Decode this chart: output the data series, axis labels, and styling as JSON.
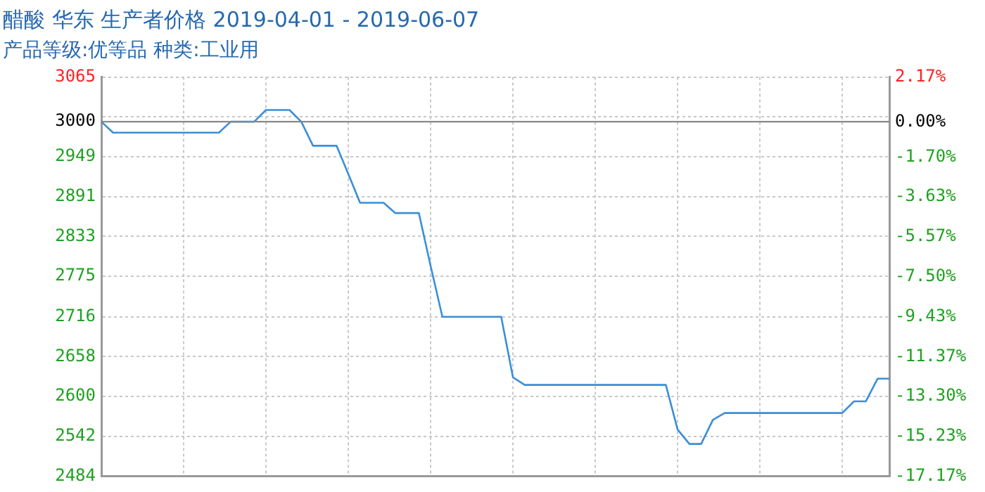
{
  "chart_data": {
    "type": "line",
    "title": "醋酸 华东 生产者价格 2019-04-01 - 2019-06-07",
    "subtitle": "产品等级:优等品 种类:工业用",
    "categories": [
      null,
      null,
      null,
      null,
      null,
      null,
      null,
      null,
      null,
      null,
      null,
      null,
      null,
      null,
      null,
      null,
      null,
      null,
      null,
      null,
      null,
      null,
      null,
      null,
      null,
      null,
      null,
      null,
      null,
      null,
      null,
      null,
      null,
      null,
      null,
      null,
      null,
      null,
      null,
      null,
      null,
      null,
      null,
      null,
      null,
      null,
      null,
      null,
      null,
      null,
      null,
      null,
      null,
      null,
      null,
      null,
      null,
      null,
      null,
      null,
      null,
      null,
      null,
      null,
      null,
      null,
      null,
      null
    ],
    "series": [
      {
        "color": "#3a8fd8",
        "values": [
          3000,
          2984,
          2984,
          2984,
          2984,
          2984,
          2984,
          2984,
          2984,
          2984,
          2984,
          3000,
          3000,
          3000,
          3017,
          3017,
          3017,
          3000,
          2965,
          2965,
          2965,
          2924,
          2882,
          2882,
          2882,
          2867,
          2867,
          2867,
          2790,
          2716,
          2716,
          2716,
          2716,
          2716,
          2716,
          2628,
          2617,
          2617,
          2617,
          2617,
          2617,
          2617,
          2617,
          2617,
          2617,
          2617,
          2617,
          2617,
          2617,
          2552,
          2531,
          2531,
          2566,
          2576,
          2576,
          2576,
          2576,
          2576,
          2576,
          2576,
          2576,
          2576,
          2576,
          2576,
          2593,
          2593,
          2626,
          2626
        ]
      }
    ],
    "ylim": [
      2484,
      3065
    ],
    "yticks": [
      3065,
      {
        "value": 3006.9,
        "label": null
      },
      3000,
      2949,
      2891,
      2833,
      2775,
      2716,
      2658,
      2600,
      2542,
      2484
    ],
    "y2lim": [
      -17.17,
      2.17
    ],
    "y2ticks": [
      {
        "value": 2.17,
        "label": "2.17%"
      },
      {
        "value": 0,
        "label": "0.00%"
      },
      {
        "value": -1.7,
        "label": "-1.70%"
      },
      {
        "value": -3.63,
        "label": "-3.63%"
      },
      {
        "value": -5.57,
        "label": "-5.57%"
      },
      {
        "value": -7.5,
        "label": "-7.50%"
      },
      {
        "value": -9.43,
        "label": "-9.43%"
      },
      {
        "value": -11.37,
        "label": "-11.37%"
      },
      {
        "value": -13.3,
        "label": "-13.30%"
      },
      {
        "value": -15.23,
        "label": "-15.23%"
      },
      {
        "value": -17.17,
        "label": "-17.17%"
      }
    ],
    "ref_lines": [
      {
        "axis": "y",
        "value": 3000,
        "color": "#888888"
      }
    ],
    "grid": true,
    "legend": false,
    "marker": "none",
    "line_style": "solid",
    "tick_labels": "y"
  }
}
